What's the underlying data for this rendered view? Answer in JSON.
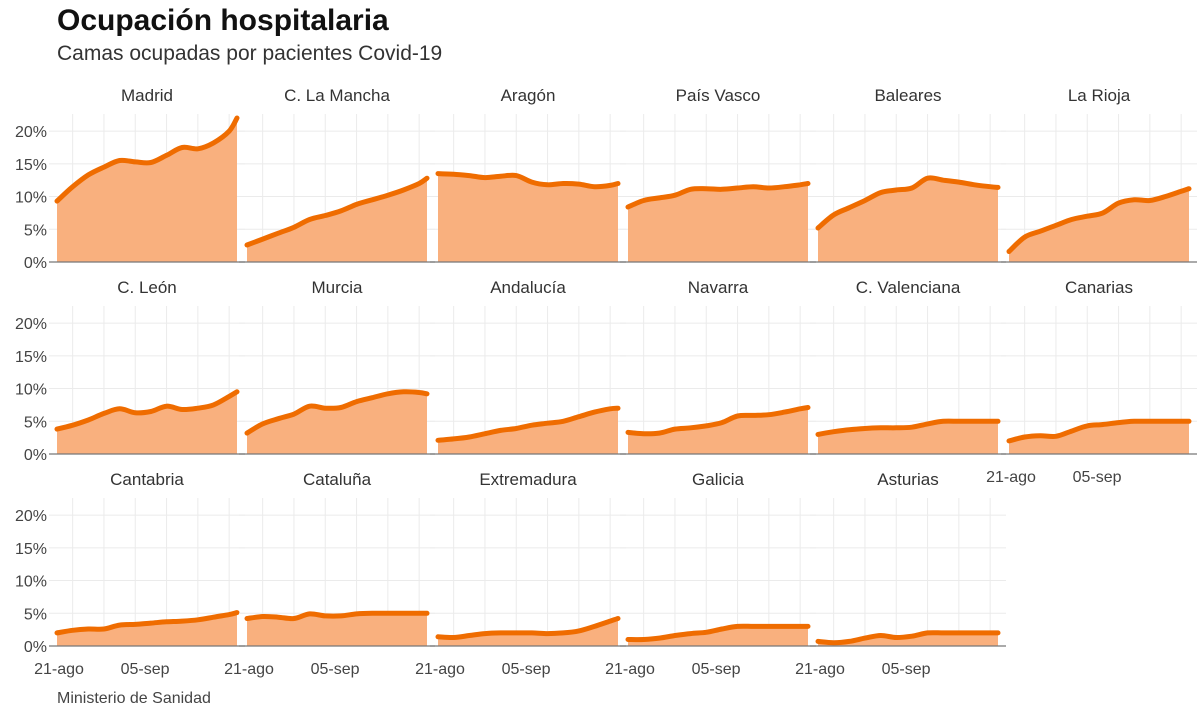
{
  "title": "Ocupación hospitalaria",
  "subtitle": "Camas ocupadas por pacientes Covid-19",
  "source": "Ministerio de Sanidad",
  "colors": {
    "line": "#ef6c00",
    "area": "#f9b07e",
    "grid": "#ebebeb",
    "axis": "#777777"
  },
  "chart_data": {
    "type": "area",
    "facet": "small-multiples",
    "title": "Ocupación hospitalaria",
    "subtitle": "Camas ocupadas por pacientes Covid-19",
    "ylabel": "",
    "ylim": [
      0,
      22
    ],
    "yticks": [
      0,
      5,
      10,
      15,
      20
    ],
    "ytick_labels": [
      "0%",
      "5%",
      "10%",
      "15%",
      "20%"
    ],
    "xlim": [
      0,
      23
    ],
    "xticks": [
      0,
      11
    ],
    "xtick_labels": [
      "21-ago",
      "05-sep"
    ],
    "x_unit": "days since 21-ago",
    "series": [
      {
        "name": "Madrid",
        "x": [
          0,
          2,
          4,
          6,
          8,
          10,
          12,
          14,
          16,
          18,
          20,
          22,
          23
        ],
        "values": [
          9.3,
          11.5,
          13.3,
          14.5,
          15.5,
          15.3,
          15.2,
          16.3,
          17.5,
          17.3,
          18.2,
          20,
          22
        ]
      },
      {
        "name": "C. La Mancha",
        "x": [
          0,
          2,
          4,
          6,
          8,
          10,
          12,
          14,
          16,
          18,
          20,
          22,
          23
        ],
        "values": [
          2.6,
          3.5,
          4.4,
          5.3,
          6.5,
          7.1,
          7.8,
          8.8,
          9.5,
          10.2,
          11,
          12,
          12.8
        ]
      },
      {
        "name": "Aragón",
        "x": [
          0,
          2,
          4,
          6,
          8,
          10,
          12,
          14,
          16,
          18,
          20,
          22,
          23
        ],
        "values": [
          13.5,
          13.4,
          13.2,
          12.9,
          13.1,
          13.2,
          12.2,
          11.8,
          12,
          11.9,
          11.5,
          11.7,
          12
        ]
      },
      {
        "name": "País Vasco",
        "x": [
          0,
          2,
          4,
          6,
          8,
          10,
          12,
          14,
          16,
          18,
          20,
          22,
          23
        ],
        "values": [
          8.4,
          9.4,
          9.8,
          10.2,
          11.1,
          11.2,
          11.1,
          11.3,
          11.5,
          11.3,
          11.5,
          11.8,
          12
        ]
      },
      {
        "name": "Baleares",
        "x": [
          0,
          2,
          4,
          6,
          8,
          10,
          12,
          14,
          16,
          18,
          20,
          22,
          23
        ],
        "values": [
          5.2,
          7.2,
          8.3,
          9.4,
          10.6,
          11,
          11.3,
          12.8,
          12.5,
          12.2,
          11.8,
          11.5,
          11.4
        ]
      },
      {
        "name": "La Rioja",
        "x": [
          0,
          2,
          4,
          6,
          8,
          10,
          12,
          14,
          16,
          18,
          20,
          22,
          23
        ],
        "values": [
          1.6,
          3.8,
          4.7,
          5.6,
          6.5,
          7,
          7.5,
          9,
          9.5,
          9.4,
          10,
          10.8,
          11.2
        ]
      },
      {
        "name": "C. León",
        "x": [
          0,
          2,
          4,
          6,
          8,
          10,
          12,
          14,
          16,
          18,
          20,
          22,
          23
        ],
        "values": [
          3.8,
          4.4,
          5.2,
          6.2,
          6.9,
          6.3,
          6.5,
          7.3,
          6.8,
          7,
          7.5,
          8.8,
          9.5
        ]
      },
      {
        "name": "Murcia",
        "x": [
          0,
          2,
          4,
          6,
          8,
          10,
          12,
          14,
          16,
          18,
          20,
          22,
          23
        ],
        "values": [
          3.2,
          4.6,
          5.4,
          6.1,
          7.3,
          7,
          7.1,
          8,
          8.6,
          9.2,
          9.5,
          9.4,
          9.2
        ]
      },
      {
        "name": "Andalucía",
        "x": [
          0,
          2,
          4,
          6,
          8,
          10,
          12,
          14,
          16,
          18,
          20,
          22,
          23
        ],
        "values": [
          2.1,
          2.3,
          2.6,
          3.1,
          3.6,
          3.9,
          4.4,
          4.7,
          5,
          5.7,
          6.4,
          6.9,
          7
        ]
      },
      {
        "name": "Navarra",
        "x": [
          0,
          2,
          4,
          6,
          8,
          10,
          12,
          14,
          16,
          18,
          20,
          22,
          23
        ],
        "values": [
          3.3,
          3.1,
          3.2,
          3.8,
          4,
          4.3,
          4.8,
          5.8,
          5.9,
          6,
          6.4,
          6.9,
          7.1
        ]
      },
      {
        "name": "C. Valenciana",
        "x": [
          0,
          2,
          4,
          6,
          8,
          10,
          12,
          14,
          16,
          18,
          20,
          22,
          23
        ],
        "values": [
          3,
          3.4,
          3.7,
          3.9,
          4,
          4,
          4.1,
          4.6,
          5,
          5,
          5,
          5,
          5
        ]
      },
      {
        "name": "Canarias",
        "x": [
          0,
          2,
          4,
          6,
          8,
          10,
          12,
          14,
          16,
          18,
          20,
          22,
          23
        ],
        "values": [
          2,
          2.6,
          2.8,
          2.7,
          3.5,
          4.3,
          4.5,
          4.8,
          5,
          5,
          5,
          5,
          5
        ]
      },
      {
        "name": "Cantabria",
        "x": [
          0,
          2,
          4,
          6,
          8,
          10,
          12,
          14,
          16,
          18,
          20,
          22,
          23
        ],
        "values": [
          2,
          2.4,
          2.6,
          2.6,
          3.2,
          3.3,
          3.5,
          3.7,
          3.8,
          4,
          4.4,
          4.8,
          5.1
        ]
      },
      {
        "name": "Cataluña",
        "x": [
          0,
          2,
          4,
          6,
          8,
          10,
          12,
          14,
          16,
          18,
          20,
          22,
          23
        ],
        "values": [
          4.2,
          4.5,
          4.4,
          4.2,
          4.9,
          4.6,
          4.6,
          4.9,
          5,
          5,
          5,
          5,
          5
        ]
      },
      {
        "name": "Extremadura",
        "x": [
          0,
          2,
          4,
          6,
          8,
          10,
          12,
          14,
          16,
          18,
          20,
          22,
          23
        ],
        "values": [
          1.4,
          1.3,
          1.6,
          1.9,
          2,
          2,
          2,
          1.9,
          2,
          2.3,
          3,
          3.8,
          4.2
        ]
      },
      {
        "name": "Galicia",
        "x": [
          0,
          2,
          4,
          6,
          8,
          10,
          12,
          14,
          16,
          18,
          20,
          22,
          23
        ],
        "values": [
          1,
          1,
          1.2,
          1.6,
          1.9,
          2.1,
          2.6,
          3,
          3,
          3,
          3,
          3,
          3
        ]
      },
      {
        "name": "Asturias",
        "x": [
          0,
          2,
          4,
          6,
          8,
          10,
          12,
          14,
          16,
          18,
          20,
          22,
          23
        ],
        "values": [
          0.7,
          0.5,
          0.7,
          1.2,
          1.6,
          1.3,
          1.5,
          2,
          2,
          2,
          2,
          2,
          2
        ]
      }
    ]
  }
}
